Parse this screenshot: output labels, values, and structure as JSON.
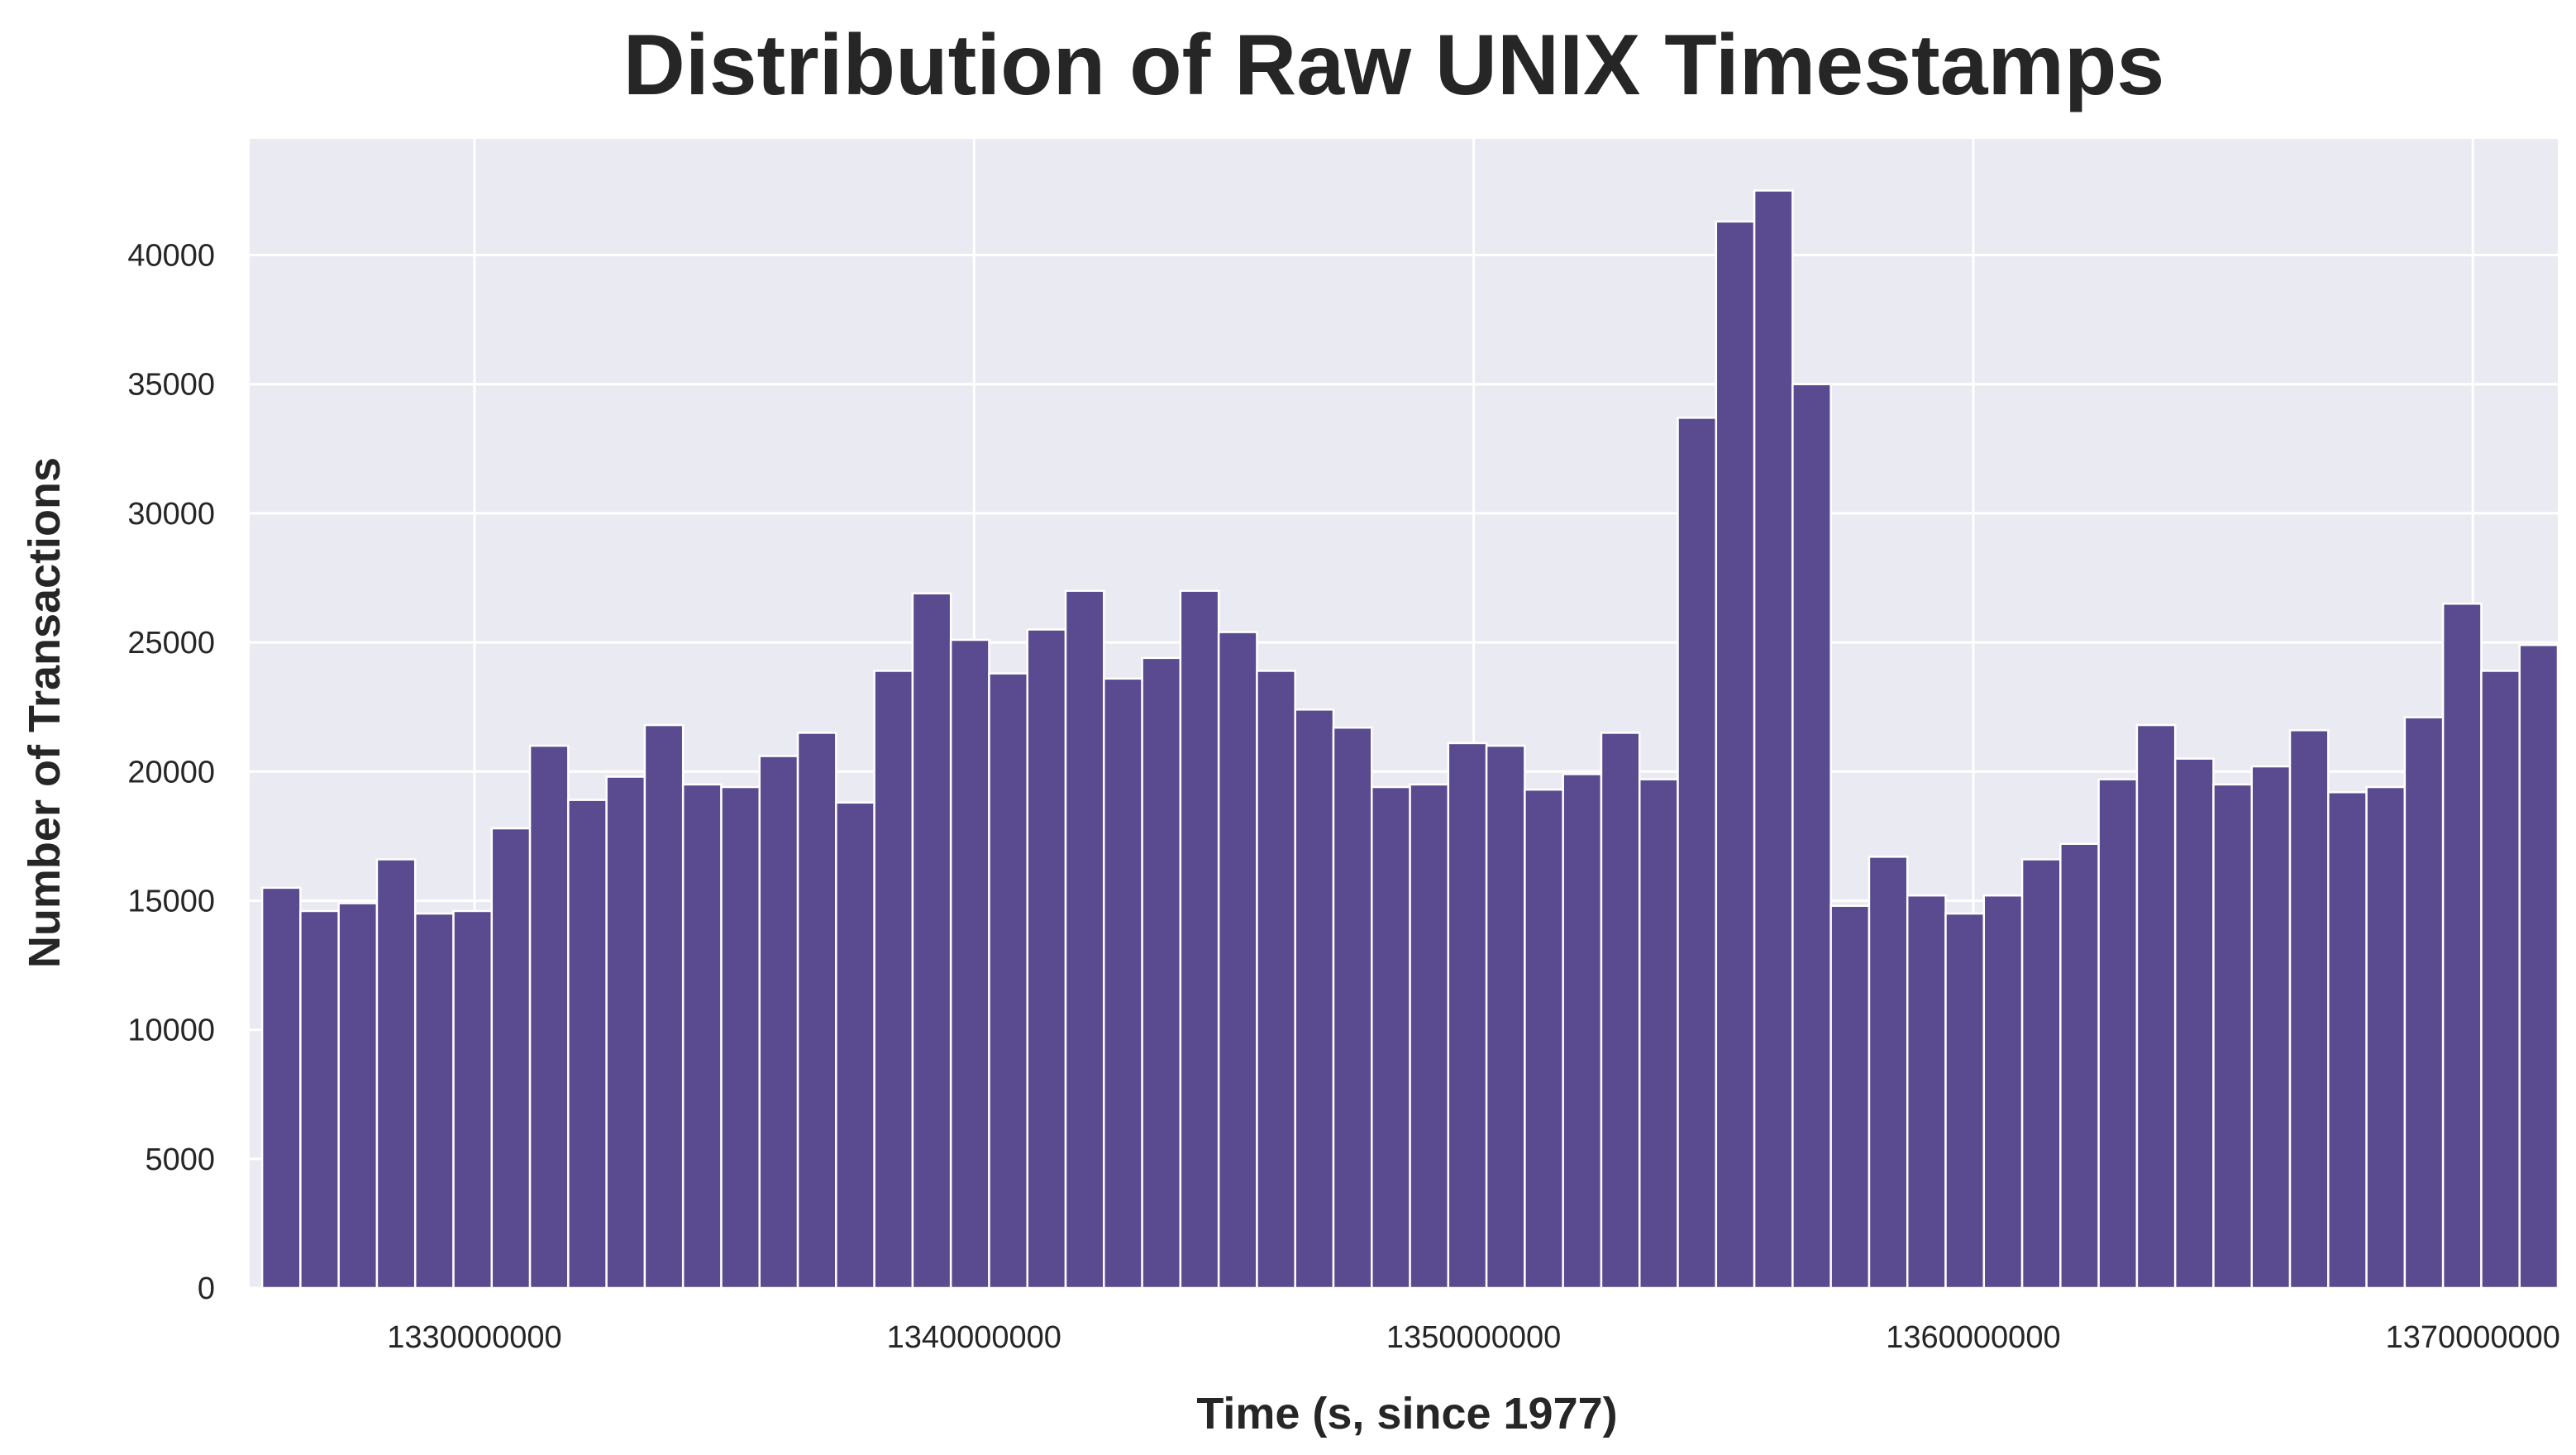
{
  "chart_data": {
    "type": "bar",
    "title": "Distribution of Raw UNIX Timestamps",
    "xlabel": "Time (s, since 1977)",
    "ylabel": "Number of Transactions",
    "bar_color": "#5a4a8f",
    "plot_background": "#eaeaf2",
    "grid": true,
    "histogram": true,
    "x_range": [
      1325500000,
      1371700000
    ],
    "ylim": [
      0,
      44500
    ],
    "x_ticks": [
      1330000000,
      1340000000,
      1350000000,
      1360000000,
      1370000000
    ],
    "x_tick_labels": [
      "1330000000",
      "1340000000",
      "1350000000",
      "1360000000",
      "1370000000"
    ],
    "y_ticks": [
      0,
      5000,
      10000,
      15000,
      20000,
      25000,
      30000,
      35000,
      40000
    ],
    "y_tick_labels": [
      "0",
      "5000",
      "10000",
      "15000",
      "20000",
      "25000",
      "30000",
      "35000",
      "40000"
    ],
    "values": [
      15500,
      14600,
      14900,
      16600,
      14500,
      14600,
      17800,
      21000,
      18900,
      19800,
      21800,
      19500,
      19400,
      20600,
      21500,
      18800,
      23900,
      26900,
      25100,
      23800,
      25500,
      27000,
      23600,
      24400,
      27000,
      25400,
      23900,
      22400,
      21700,
      19400,
      19500,
      21100,
      21000,
      19300,
      19900,
      21500,
      19700,
      33700,
      41300,
      42500,
      35000,
      14800,
      16700,
      15200,
      14500,
      15200,
      16600,
      17200,
      19700,
      21800,
      20500,
      19500,
      20200,
      21600,
      19200,
      19400,
      22100,
      26500,
      23900,
      24900
    ]
  }
}
